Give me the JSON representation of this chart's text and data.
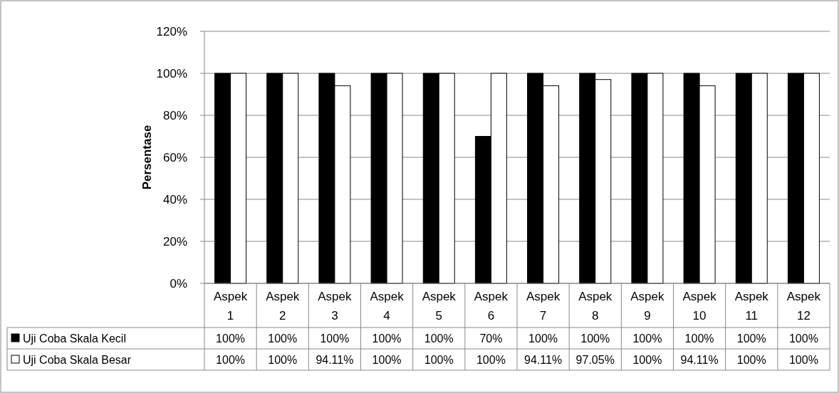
{
  "chart_data": {
    "type": "bar",
    "ylabel": "Persentase",
    "categories": [
      "Aspek 1",
      "Aspek 2",
      "Aspek 3",
      "Aspek 4",
      "Aspek 5",
      "Aspek 6",
      "Aspek 7",
      "Aspek 8",
      "Aspek 9",
      "Aspek 10",
      "Aspek 11",
      "Aspek 12"
    ],
    "series": [
      {
        "name": "Uji Coba Skala Kecil",
        "color": "#000000",
        "values": [
          100,
          100,
          100,
          100,
          100,
          70,
          100,
          100,
          100,
          100,
          100,
          100
        ],
        "value_labels": [
          "100%",
          "100%",
          "100%",
          "100%",
          "100%",
          "70%",
          "100%",
          "100%",
          "100%",
          "100%",
          "100%",
          "100%"
        ]
      },
      {
        "name": "Uji Coba Skala Besar",
        "color": "#ffffff",
        "values": [
          100,
          100,
          94.11,
          100,
          100,
          100,
          94.11,
          97.05,
          100,
          94.11,
          100,
          100
        ],
        "value_labels": [
          "100%",
          "100%",
          "94.11%",
          "100%",
          "100%",
          "100%",
          "94.11%",
          "97.05%",
          "100%",
          "94.11%",
          "100%",
          "100%"
        ]
      }
    ],
    "ylim": [
      0,
      120
    ],
    "yticks": [
      {
        "value": 0,
        "label": "0%"
      },
      {
        "value": 20,
        "label": "20%"
      },
      {
        "value": 40,
        "label": "40%"
      },
      {
        "value": 60,
        "label": "60%"
      },
      {
        "value": 80,
        "label": "80%"
      },
      {
        "value": 100,
        "label": "100%"
      },
      {
        "value": 120,
        "label": "120%"
      }
    ],
    "grid": "y",
    "legend": "bottom"
  }
}
